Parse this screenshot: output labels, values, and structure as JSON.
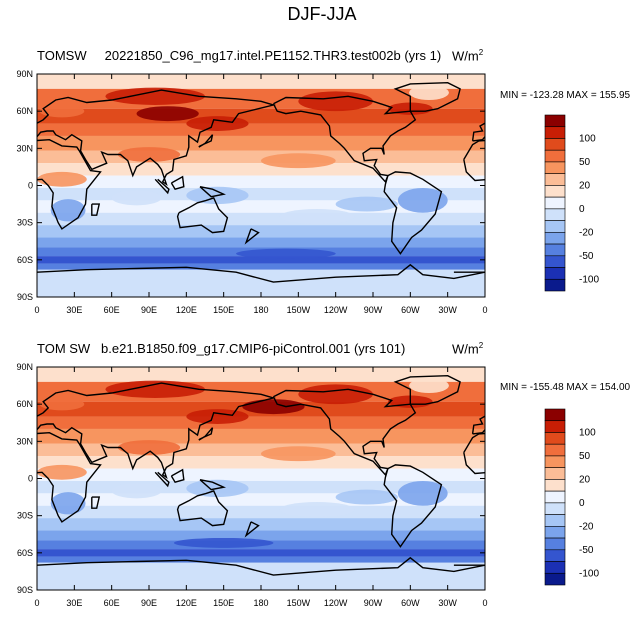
{
  "title": "DJF-JJA",
  "panels": [
    {
      "title": "TOMSW     20221850_C96_mg17.intel.PE1152.THR3.test002b (yrs 1)",
      "units_base": "W/m",
      "units_exp": "2",
      "minmax": "MIN = -123.28 MAX = 155.95",
      "variant": "a"
    },
    {
      "title": "TOM SW   b.e21.B1850.f09_g17.CMIP6-piControl.001 (yrs 101)",
      "units_base": "W/m",
      "units_exp": "2",
      "minmax": "MIN = -155.48 MAX = 154.00",
      "variant": "b"
    }
  ],
  "axes": {
    "lat_labels": [
      "90N",
      "60N",
      "30N",
      "0",
      "30S",
      "60S",
      "90S"
    ],
    "lon_labels": [
      "0",
      "30E",
      "60E",
      "90E",
      "120E",
      "150E",
      "180",
      "150W",
      "120W",
      "90W",
      "60W",
      "30W",
      "0"
    ]
  },
  "colorbar": {
    "labels": [
      "100",
      "50",
      "20",
      "0",
      "-20",
      "-50",
      "-100"
    ],
    "colors": [
      "#8b0000",
      "#c81e05",
      "#e04b1c",
      "#f06e3c",
      "#f7955f",
      "#fbbd97",
      "#fde0cc",
      "#eef4ff",
      "#cfe1fa",
      "#a6c6f5",
      "#7ba4ec",
      "#5680e0",
      "#3455cf",
      "#1b30b4",
      "#0a1a8c"
    ]
  }
}
